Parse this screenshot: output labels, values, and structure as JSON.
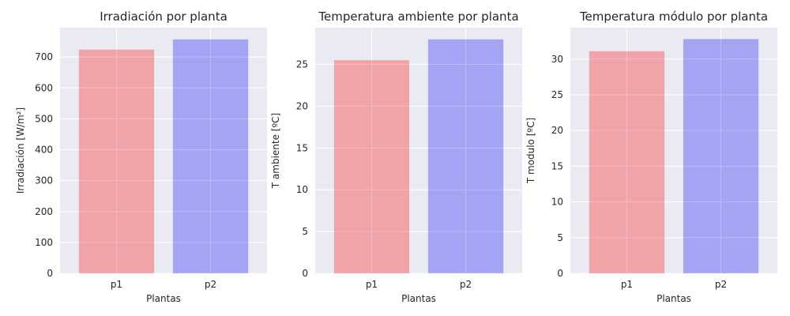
{
  "figure": {
    "background": "#ffffff",
    "axes_background": "#eaeaf2",
    "grid_color": "#ffffff"
  },
  "chart_data": [
    {
      "type": "bar",
      "title": "Irradiación por planta",
      "xlabel": "Plantas",
      "ylabel": "Irradiación [W/m²]",
      "categories": [
        "p1",
        "p2"
      ],
      "values": [
        724,
        757
      ],
      "colors": [
        "#f0a3a8",
        "#a3a4f4"
      ],
      "ylim": [
        0,
        795
      ],
      "yticks": [
        0,
        100,
        200,
        300,
        400,
        500,
        600,
        700
      ],
      "grid": true
    },
    {
      "type": "bar",
      "title": "Temperatura ambiente por planta",
      "xlabel": "Plantas",
      "ylabel": "T ambiente [ºC]",
      "categories": [
        "p1",
        "p2"
      ],
      "values": [
        25.5,
        28.0
      ],
      "colors": [
        "#f0a3a8",
        "#a3a4f4"
      ],
      "ylim": [
        0,
        29.4
      ],
      "yticks": [
        0,
        5,
        10,
        15,
        20,
        25
      ],
      "grid": true
    },
    {
      "type": "bar",
      "title": "Temperatura módulo por planta",
      "xlabel": "Plantas",
      "ylabel": "T modulo [ºC]",
      "categories": [
        "p1",
        "p2"
      ],
      "values": [
        31.1,
        32.8
      ],
      "colors": [
        "#f0a3a8",
        "#a3a4f4"
      ],
      "ylim": [
        0,
        34.4
      ],
      "yticks": [
        0,
        5,
        10,
        15,
        20,
        25,
        30
      ],
      "grid": true
    }
  ]
}
